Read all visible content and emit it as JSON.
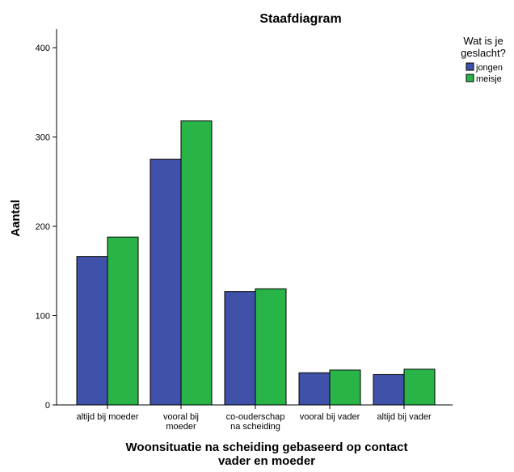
{
  "chart_data": {
    "type": "bar",
    "title": "Staafdiagram",
    "xlabel": "Woonsituatie na scheiding gebaseerd op contact vader en moeder",
    "ylabel": "Aantal",
    "categories": [
      "altijd bij moeder",
      "vooral bij moeder",
      "co-ouderschap na scheiding",
      "vooral bij vader",
      "altijd bij vader"
    ],
    "series": [
      {
        "name": "jongen",
        "color": "#3f51a8",
        "values": [
          166,
          275,
          127,
          36,
          34
        ]
      },
      {
        "name": "meisje",
        "color": "#29b448",
        "values": [
          188,
          318,
          130,
          39,
          40
        ]
      }
    ],
    "ylim": [
      0,
      400
    ],
    "yticks": [
      0,
      100,
      200,
      300,
      400
    ],
    "grid": false,
    "legend": {
      "title": "Wat is je geslacht?",
      "placement": "top-right"
    }
  }
}
